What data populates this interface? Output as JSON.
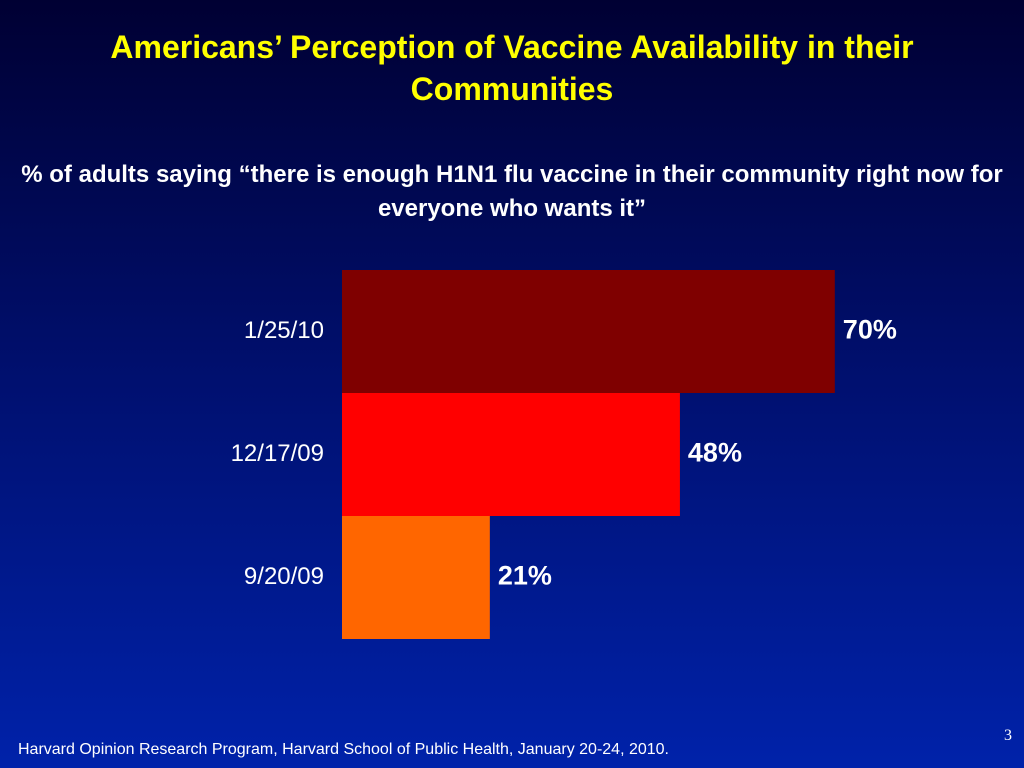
{
  "slide": {
    "title": "Americans’ Perception of Vaccine Availability in their Communities",
    "subtitle": "% of adults saying “there is enough H1N1 flu vaccine in their community right now for everyone who wants it”",
    "source": "Harvard Opinion Research Program, Harvard School of Public Health, January 20-24, 2010.",
    "page_number": "3"
  },
  "chart_data": {
    "type": "bar",
    "orientation": "horizontal",
    "categories": [
      "1/25/10",
      "12/17/09",
      "9/20/09"
    ],
    "values": [
      70,
      48,
      21
    ],
    "data_labels": [
      "70%",
      "48%",
      "21%"
    ],
    "colors": [
      "#7f0000",
      "#ff0000",
      "#ff6600"
    ],
    "title": "",
    "xlabel": "",
    "ylabel": "",
    "xlim": [
      0,
      100
    ],
    "grid": false,
    "legend": "none"
  }
}
